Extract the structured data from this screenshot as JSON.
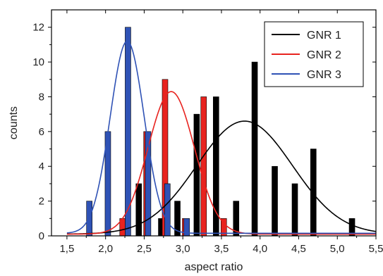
{
  "chart_data": {
    "type": "bar",
    "xlabel": "aspect ratio",
    "ylabel": "counts",
    "xlim": [
      1.3,
      5.5
    ],
    "ylim": [
      0,
      13
    ],
    "grid": false,
    "legend_position": "top-right",
    "x_ticks": [
      "1,5",
      "2,0",
      "2,5",
      "3,0",
      "3,5",
      "4,0",
      "4,5",
      "5,0",
      "5,5"
    ],
    "x_tick_values": [
      1.5,
      2.0,
      2.5,
      3.0,
      3.5,
      4.0,
      4.5,
      5.0,
      5.5
    ],
    "y_ticks": [
      "0",
      "2",
      "4",
      "6",
      "8",
      "10",
      "12"
    ],
    "y_tick_values": [
      0,
      2,
      4,
      6,
      8,
      10,
      12
    ],
    "series": [
      {
        "name": "GNR 1",
        "color": "#000000",
        "bars": [
          {
            "x": 2.43,
            "y": 3
          },
          {
            "x": 2.72,
            "y": 1
          },
          {
            "x": 2.93,
            "y": 2
          },
          {
            "x": 3.18,
            "y": 7
          },
          {
            "x": 3.43,
            "y": 8
          },
          {
            "x": 3.69,
            "y": 2
          },
          {
            "x": 3.93,
            "y": 10
          },
          {
            "x": 4.19,
            "y": 4
          },
          {
            "x": 4.45,
            "y": 3
          },
          {
            "x": 4.69,
            "y": 5
          },
          {
            "x": 5.19,
            "y": 1
          }
        ],
        "fit": {
          "mu": 3.8,
          "sigma": 0.62,
          "peak": 6.6,
          "base": 0.1
        }
      },
      {
        "name": "GNR 2",
        "color": "#e8231f",
        "bars": [
          {
            "x": 2.22,
            "y": 1
          },
          {
            "x": 2.53,
            "y": 6
          },
          {
            "x": 2.77,
            "y": 9
          },
          {
            "x": 3.03,
            "y": 1
          },
          {
            "x": 3.27,
            "y": 8
          },
          {
            "x": 3.53,
            "y": 1
          }
        ],
        "fit": {
          "mu": 2.85,
          "sigma": 0.3,
          "peak": 8.3,
          "base": 0.1
        }
      },
      {
        "name": "GNR 3",
        "color": "#2f52b5",
        "bars": [
          {
            "x": 1.79,
            "y": 2
          },
          {
            "x": 2.03,
            "y": 6
          },
          {
            "x": 2.29,
            "y": 12
          },
          {
            "x": 2.55,
            "y": 6
          },
          {
            "x": 2.8,
            "y": 3
          },
          {
            "x": 3.05,
            "y": 1
          }
        ],
        "fit": {
          "mu": 2.28,
          "sigma": 0.22,
          "peak": 11.2,
          "base": 0.15
        }
      }
    ]
  }
}
